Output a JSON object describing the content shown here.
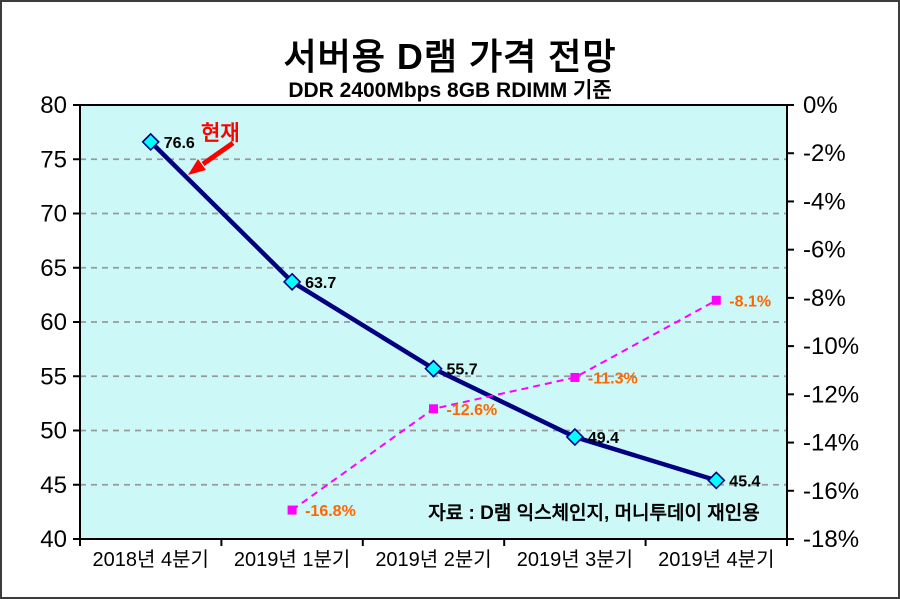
{
  "title": "서버용 D램  가격 전망",
  "subtitle": "DDR 2400Mbps 8GB RDIMM 기준",
  "annotation": {
    "label": "현재",
    "color": "#FF0000"
  },
  "source_note": "자료 : D램 익스체인지, 머니투데이 재인용",
  "chart_data": {
    "type": "line",
    "title": "서버용 D램 가격 전망",
    "subtitle": "DDR 2400Mbps 8GB RDIMM 기준",
    "categories": [
      "2018년 4분기",
      "2019년 1분기",
      "2019년 2분기",
      "2019년 3분기",
      "2019년 4분기"
    ],
    "series": [
      {
        "name": "server-dram-price",
        "axis": "left",
        "values": [
          76.6,
          63.7,
          55.7,
          49.4,
          45.4
        ],
        "labels": [
          "76.6",
          "63.7",
          "55.7",
          "49.4",
          "45.4"
        ],
        "color": "#000080",
        "marker": "diamond",
        "marker_fill": "#00FFFF",
        "label_color": "#000000",
        "line_style": "solid"
      },
      {
        "name": "price-change-percent",
        "axis": "right",
        "values": [
          null,
          -16.8,
          -12.6,
          -11.3,
          -8.1
        ],
        "labels": [
          null,
          "-16.8%",
          "-12.6%",
          "-11.3%",
          "-8.1%"
        ],
        "color": "#FF00FF",
        "marker": "square",
        "marker_fill": "#FF00FF",
        "label_color": "#FF6600",
        "line_style": "dashed"
      }
    ],
    "left_axis": {
      "min": 40,
      "max": 80,
      "step": 5,
      "ticks": [
        "80",
        "75",
        "70",
        "65",
        "60",
        "55",
        "50",
        "45",
        "40"
      ]
    },
    "right_axis": {
      "min": -18,
      "max": 0,
      "step": 2,
      "ticks": [
        "0%",
        "-2%",
        "-4%",
        "-6%",
        "-8%",
        "-10%",
        "-12%",
        "-14%",
        "-16%",
        "-18%"
      ]
    },
    "grid": true,
    "grid_color": "#999999",
    "plot_bg": "#CCF8F8",
    "legend": "none"
  }
}
